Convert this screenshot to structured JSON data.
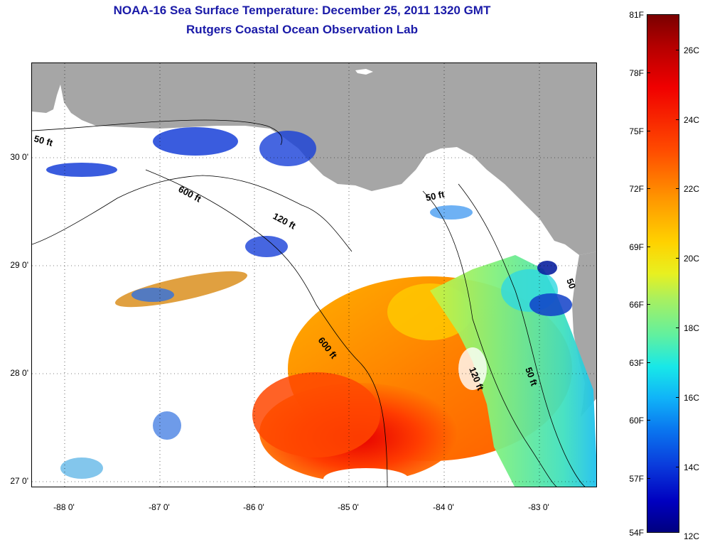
{
  "header": {
    "title_line1": "NOAA-16 Sea Surface Temperature:  December 25, 2011 1320 GMT",
    "title_line2": "Rutgers Coastal Ocean Observation Lab"
  },
  "map": {
    "latitude_labels": [
      "30 0'",
      "29 0'",
      "28 0'",
      "27 0'"
    ],
    "longitude_labels": [
      "-88 0'",
      "-87 0'",
      "-86 0'",
      "-85 0'",
      "-84 0'",
      "-83 0'"
    ],
    "isobath_labels": [
      "50 ft",
      "600 ft",
      "120 ft",
      "50 ft",
      "600 ft",
      "120 ft",
      "50 ft",
      "50"
    ],
    "colors": {
      "land": "#a6a6a6",
      "title": "#1a1aa8",
      "no_data": "#ffffff"
    }
  },
  "colorbar": {
    "fahrenheit_labels": [
      "81F",
      "78F",
      "75F",
      "72F",
      "69F",
      "66F",
      "63F",
      "60F",
      "57F",
      "54F"
    ],
    "celsius_labels": [
      "26C",
      "24C",
      "22C",
      "20C",
      "18C",
      "16C",
      "14C",
      "12C"
    ]
  }
}
